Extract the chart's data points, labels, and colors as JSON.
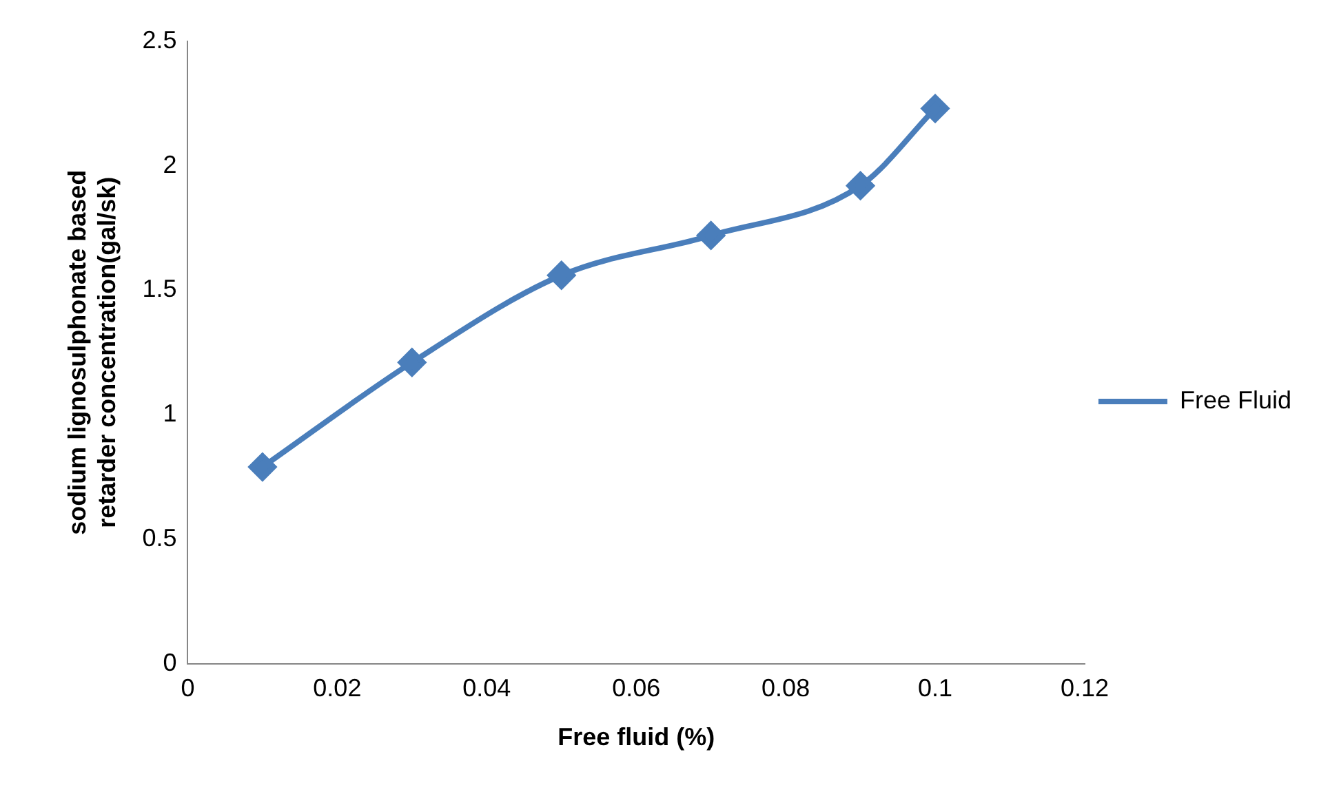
{
  "chart_data": {
    "type": "line",
    "xlabel": "Free fluid (%)",
    "ylabel": "sodium lignosulphonate based retarder concentration(gal/sk)",
    "x": [
      0.01,
      0.03,
      0.05,
      0.07,
      0.09,
      0.1
    ],
    "series": [
      {
        "name": "Free Fluid",
        "color": "#4a7ebb",
        "values": [
          0.79,
          1.21,
          1.56,
          1.72,
          1.92,
          2.23
        ]
      }
    ],
    "xlim": [
      0,
      0.12
    ],
    "xticks": [
      0,
      0.02,
      0.04,
      0.06,
      0.08,
      0.1,
      0.12
    ],
    "ylim": [
      0,
      2.5
    ],
    "yticks": [
      0,
      0.5,
      1,
      1.5,
      2,
      2.5
    ],
    "grid": false,
    "legend": "right",
    "marker": "diamond",
    "line_style": "solid"
  }
}
